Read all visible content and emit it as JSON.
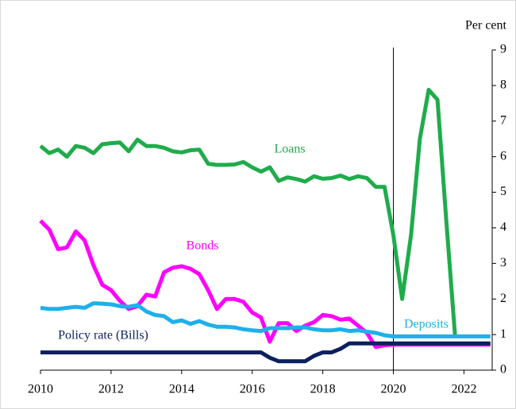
{
  "chart_data": {
    "type": "line",
    "y_axis_label": "Per cent",
    "x": [
      2010,
      2010.25,
      2010.5,
      2010.75,
      2011,
      2011.25,
      2011.5,
      2011.75,
      2012,
      2012.25,
      2012.5,
      2012.75,
      2013,
      2013.25,
      2013.5,
      2013.75,
      2014,
      2014.25,
      2014.5,
      2014.75,
      2015,
      2015.25,
      2015.5,
      2015.75,
      2016,
      2016.25,
      2016.5,
      2016.75,
      2017,
      2017.25,
      2017.5,
      2017.75,
      2018,
      2018.25,
      2018.5,
      2018.75,
      2019,
      2019.25,
      2019.5,
      2019.75,
      2020,
      2020.25,
      2020.5,
      2020.75,
      2021,
      2021.25,
      2021.5,
      2021.75,
      2022,
      2022.25,
      2022.5,
      2022.75
    ],
    "series": [
      {
        "name": "Loans",
        "color": "#1fac4b",
        "values": [
          6.3,
          6.1,
          6.2,
          6.0,
          6.3,
          6.25,
          6.1,
          6.35,
          6.38,
          6.4,
          6.15,
          6.48,
          6.3,
          6.3,
          6.25,
          6.15,
          6.12,
          6.18,
          6.2,
          5.8,
          5.77,
          5.77,
          5.78,
          5.85,
          5.7,
          5.58,
          5.7,
          5.32,
          5.42,
          5.37,
          5.3,
          5.45,
          5.38,
          5.4,
          5.47,
          5.37,
          5.45,
          5.4,
          5.15,
          5.15,
          3.8,
          2.0,
          3.8,
          6.5,
          7.88,
          7.6,
          4.2,
          0.95,
          null,
          null,
          null,
          null
        ]
      },
      {
        "name": "Bonds",
        "color": "#ff00ff",
        "values": [
          4.2,
          3.95,
          3.4,
          3.45,
          3.9,
          3.65,
          2.95,
          2.4,
          2.25,
          1.95,
          1.72,
          1.8,
          2.12,
          2.07,
          2.75,
          2.88,
          2.92,
          2.85,
          2.7,
          2.25,
          1.72,
          2.0,
          2.0,
          1.92,
          1.62,
          1.48,
          0.8,
          1.32,
          1.32,
          1.1,
          1.25,
          1.35,
          1.55,
          1.52,
          1.42,
          1.45,
          1.25,
          1.05,
          0.65,
          0.7,
          0.72,
          0.72,
          0.72,
          0.72,
          0.72,
          0.72,
          0.72,
          0.72,
          0.72,
          0.72,
          0.72,
          0.72
        ]
      },
      {
        "name": "Deposits",
        "color": "#1eb0ea",
        "values": [
          1.75,
          1.72,
          1.72,
          1.75,
          1.78,
          1.75,
          1.88,
          1.87,
          1.85,
          1.8,
          1.78,
          1.83,
          1.65,
          1.55,
          1.52,
          1.35,
          1.4,
          1.3,
          1.38,
          1.28,
          1.22,
          1.22,
          1.2,
          1.15,
          1.12,
          1.1,
          1.18,
          1.18,
          1.18,
          1.2,
          1.2,
          1.15,
          1.12,
          1.12,
          1.15,
          1.1,
          1.12,
          1.08,
          1.05,
          0.98,
          0.95,
          0.95,
          0.95,
          0.95,
          0.95,
          0.95,
          0.95,
          0.95,
          0.95,
          0.95,
          0.95,
          0.95
        ]
      },
      {
        "name": "Policy rate (Bills)",
        "color": "#0c1f5e",
        "values": [
          0.5,
          0.5,
          0.5,
          0.5,
          0.5,
          0.5,
          0.5,
          0.5,
          0.5,
          0.5,
          0.5,
          0.5,
          0.5,
          0.5,
          0.5,
          0.5,
          0.5,
          0.5,
          0.5,
          0.5,
          0.5,
          0.5,
          0.5,
          0.5,
          0.5,
          0.5,
          0.35,
          0.25,
          0.25,
          0.25,
          0.25,
          0.4,
          0.5,
          0.5,
          0.6,
          0.75,
          0.75,
          0.75,
          0.75,
          0.75,
          0.75,
          0.75,
          0.75,
          0.75,
          0.75,
          0.75,
          0.75,
          0.75,
          0.75,
          0.75,
          0.75,
          0.75
        ]
      }
    ],
    "vline": 2020,
    "xlim": [
      2010,
      2022.8
    ],
    "xticks": [
      2010,
      2012,
      2014,
      2016,
      2018,
      2020,
      2022
    ],
    "ylim": [
      0,
      9
    ],
    "yticks": [
      0,
      1,
      2,
      3,
      4,
      5,
      6,
      7,
      8,
      9
    ]
  }
}
